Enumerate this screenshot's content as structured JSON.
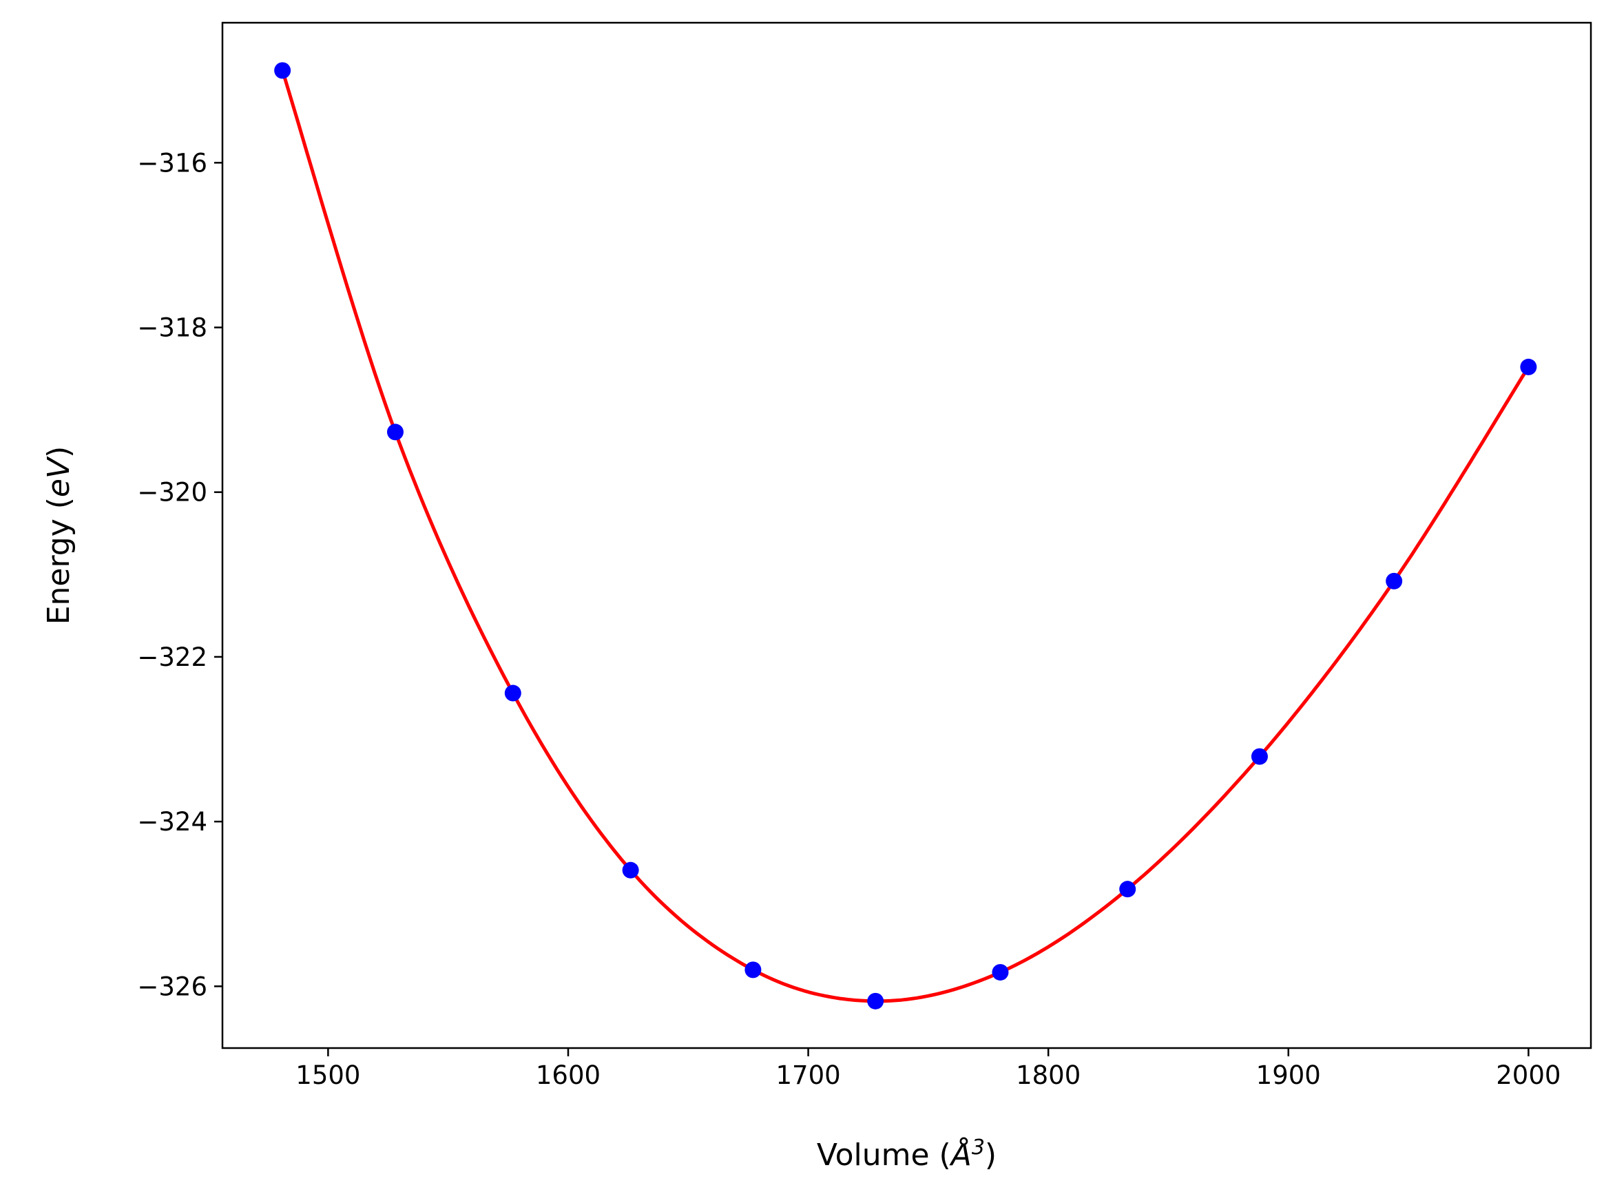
{
  "chart_data": {
    "type": "scatter",
    "title": "",
    "xlabel": {
      "text": "Volume (",
      "symbol": "Å",
      "power": "3",
      "close": ")"
    },
    "ylabel": {
      "text": "Energy (",
      "unit": "eV",
      "close": ")"
    },
    "xlim": [
      1456,
      2026
    ],
    "ylim": [
      -326.75,
      -314.3
    ],
    "x_ticks": [
      1500,
      1600,
      1700,
      1800,
      1900,
      2000
    ],
    "x_tick_labels": [
      "1500",
      "1600",
      "1700",
      "1800",
      "1900",
      "2000"
    ],
    "y_ticks": [
      -316,
      -318,
      -320,
      -322,
      -324,
      -326
    ],
    "y_tick_labels": [
      "−316",
      "−318",
      "−320",
      "−322",
      "−324",
      "−326"
    ],
    "grid": false,
    "series": [
      {
        "kind": "markers",
        "color": "#0000ff",
        "points": [
          [
            1481,
            -314.88
          ],
          [
            1528,
            -319.27
          ],
          [
            1577,
            -322.44
          ],
          [
            1626,
            -324.59
          ],
          [
            1677,
            -325.8
          ],
          [
            1728,
            -326.18
          ],
          [
            1780,
            -325.83
          ],
          [
            1833,
            -324.82
          ],
          [
            1888,
            -323.21
          ],
          [
            1944,
            -321.08
          ],
          [
            2000,
            -318.48
          ]
        ]
      },
      {
        "kind": "fit-line",
        "color": "#ff0000"
      }
    ]
  }
}
